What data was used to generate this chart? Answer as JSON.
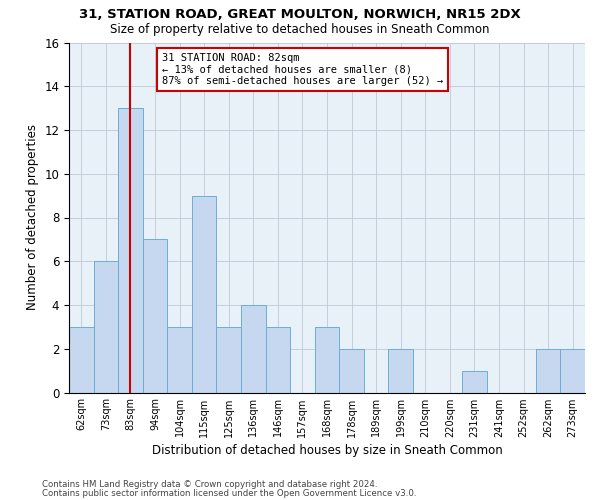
{
  "title1": "31, STATION ROAD, GREAT MOULTON, NORWICH, NR15 2DX",
  "title2": "Size of property relative to detached houses in Sneath Common",
  "xlabel": "Distribution of detached houses by size in Sneath Common",
  "ylabel": "Number of detached properties",
  "categories": [
    "62sqm",
    "73sqm",
    "83sqm",
    "94sqm",
    "104sqm",
    "115sqm",
    "125sqm",
    "136sqm",
    "146sqm",
    "157sqm",
    "168sqm",
    "178sqm",
    "189sqm",
    "199sqm",
    "210sqm",
    "220sqm",
    "231sqm",
    "241sqm",
    "252sqm",
    "262sqm",
    "273sqm"
  ],
  "values": [
    3,
    6,
    13,
    7,
    3,
    9,
    3,
    4,
    3,
    0,
    3,
    2,
    0,
    2,
    0,
    0,
    1,
    0,
    0,
    2,
    2
  ],
  "bar_color": "#C5D8EF",
  "bar_edge_color": "#6BAED6",
  "subject_line_color": "#CC0000",
  "annotation_text": "31 STATION ROAD: 82sqm\n← 13% of detached houses are smaller (8)\n87% of semi-detached houses are larger (52) →",
  "annotation_box_color": "#CC0000",
  "ylim": [
    0,
    16
  ],
  "yticks": [
    0,
    2,
    4,
    6,
    8,
    10,
    12,
    14,
    16
  ],
  "footer1": "Contains HM Land Registry data © Crown copyright and database right 2024.",
  "footer2": "Contains public sector information licensed under the Open Government Licence v3.0.",
  "background_color": "#FFFFFF",
  "axes_bg_color": "#E8F0F8",
  "grid_color": "#C0C8D8"
}
